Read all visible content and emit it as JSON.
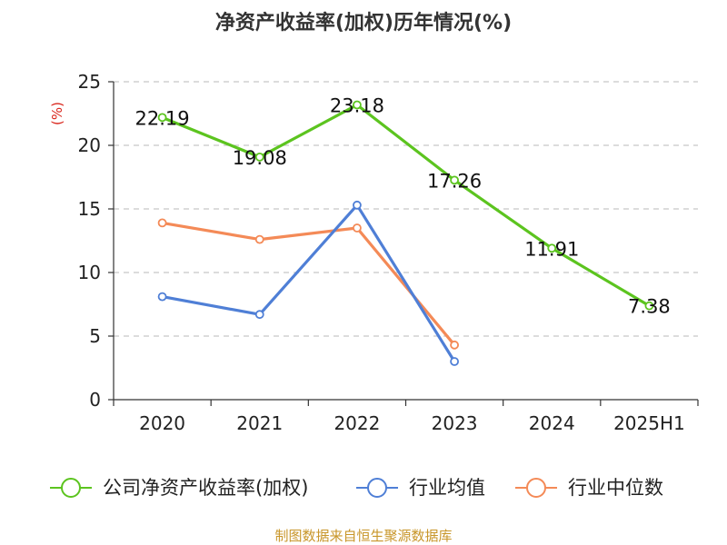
{
  "colors": {
    "company": "#5cc41f",
    "industry_avg": "#4f7fd6",
    "industry_median": "#f48a57",
    "grid": "#c8c8c8",
    "axis": "#333333"
  },
  "source": "制图数据来自恒生聚源数据库",
  "chart_data": {
    "type": "line",
    "title": "净资产收益率(加权)历年情况(%)",
    "ylabel": "(%)",
    "xlabel": "",
    "categories": [
      "2020",
      "2021",
      "2022",
      "2023",
      "2024",
      "2025H1"
    ],
    "ylim": [
      0,
      25
    ],
    "yticks": [
      0,
      5,
      10,
      15,
      20,
      25
    ],
    "grid": true,
    "legend_position": "bottom",
    "series": [
      {
        "name": "公司净资产收益率(加权)",
        "color_key": "company",
        "values": [
          22.19,
          19.08,
          23.18,
          17.26,
          11.91,
          7.38
        ],
        "labels": [
          "22.19",
          "19.08",
          "23.18",
          "17.26",
          "11.91",
          "7.38"
        ]
      },
      {
        "name": "行业均值",
        "color_key": "industry_avg",
        "values": [
          8.1,
          6.7,
          15.3,
          3.0,
          null,
          null
        ]
      },
      {
        "name": "行业中位数",
        "color_key": "industry_median",
        "values": [
          13.9,
          12.6,
          13.5,
          4.3,
          null,
          null
        ]
      }
    ]
  }
}
